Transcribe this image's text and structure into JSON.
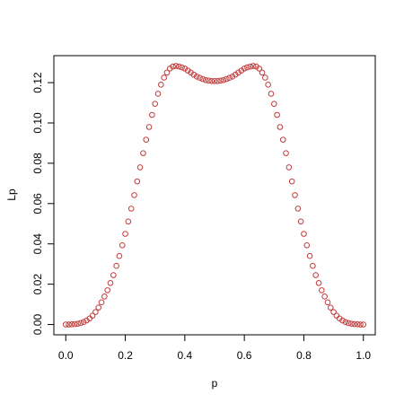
{
  "chart_data": {
    "type": "scatter",
    "xlabel": "p",
    "ylabel": "Lp",
    "color": "#c23b3b",
    "x": [
      0,
      0.01,
      0.02,
      0.03,
      0.04,
      0.05,
      0.06,
      0.07,
      0.08,
      0.09,
      0.1,
      0.11,
      0.12,
      0.13,
      0.14,
      0.15,
      0.16,
      0.17,
      0.18,
      0.19,
      0.2,
      0.21,
      0.22,
      0.23,
      0.24,
      0.25,
      0.26,
      0.27,
      0.28,
      0.29,
      0.3,
      0.31,
      0.32,
      0.33,
      0.34,
      0.35,
      0.36,
      0.37,
      0.38,
      0.39,
      0.4,
      0.41,
      0.42,
      0.43,
      0.44,
      0.45,
      0.46,
      0.47,
      0.48,
      0.49,
      0.5,
      0.51,
      0.52,
      0.53,
      0.54,
      0.55,
      0.56,
      0.57,
      0.58,
      0.59,
      0.6,
      0.61,
      0.62,
      0.63,
      0.64,
      0.65,
      0.66,
      0.67,
      0.68,
      0.69,
      0.7,
      0.71,
      0.72,
      0.73,
      0.74,
      0.75,
      0.76,
      0.77,
      0.78,
      0.79,
      0.8,
      0.81,
      0.82,
      0.83,
      0.84,
      0.85,
      0.86,
      0.87,
      0.88,
      0.89,
      0.9,
      0.91,
      0.92,
      0.93,
      0.94,
      0.95,
      0.96,
      0.97,
      0.98,
      0.99,
      1
    ],
    "values": [
      0,
      0,
      0.0001,
      0.0002,
      0.0004,
      0.0007,
      0.0012,
      0.002,
      0.003,
      0.0044,
      0.0062,
      0.0084,
      0.011,
      0.0139,
      0.017,
      0.0206,
      0.0245,
      0.0291,
      0.034,
      0.0393,
      0.045,
      0.0511,
      0.0575,
      0.0642,
      0.071,
      0.078,
      0.085,
      0.0917,
      0.098,
      0.104,
      0.1095,
      0.1145,
      0.119,
      0.1225,
      0.125,
      0.127,
      0.128,
      0.1283,
      0.128,
      0.1276,
      0.127,
      0.126,
      0.125,
      0.124,
      0.123,
      0.1224,
      0.1218,
      0.1213,
      0.121,
      0.1208,
      0.1208,
      0.1208,
      0.121,
      0.1213,
      0.1218,
      0.1224,
      0.123,
      0.124,
      0.125,
      0.126,
      0.127,
      0.1276,
      0.128,
      0.1283,
      0.128,
      0.127,
      0.125,
      0.1225,
      0.119,
      0.1145,
      0.1095,
      0.104,
      0.098,
      0.0917,
      0.085,
      0.078,
      0.071,
      0.0642,
      0.0575,
      0.0511,
      0.045,
      0.0393,
      0.034,
      0.0291,
      0.0245,
      0.0206,
      0.017,
      0.0139,
      0.011,
      0.0084,
      0.0062,
      0.0044,
      0.003,
      0.002,
      0.0012,
      0.0007,
      0.0004,
      0.0002,
      0.0001,
      0,
      0
    ],
    "xlim": [
      -0.04,
      1.04
    ],
    "ylim": [
      -0.0051,
      0.1334
    ],
    "xticks": [
      {
        "value": 0,
        "label": "0.0"
      },
      0.2,
      0.4,
      0.6,
      0.8,
      {
        "value": 1,
        "label": "1.0"
      }
    ],
    "yticks": [
      {
        "value": 0,
        "label": "0.00"
      },
      0.02,
      0.04,
      0.06,
      0.08,
      {
        "value": 0.1,
        "label": "0.10"
      },
      0.12
    ]
  }
}
